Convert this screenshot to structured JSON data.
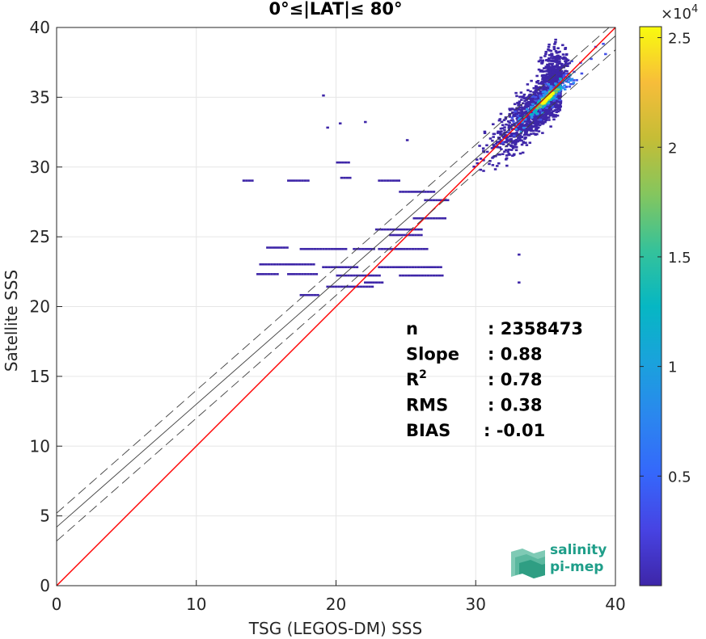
{
  "chart_data": {
    "type": "heatmap",
    "title": "0°≤|LAT|≤ 80°",
    "xlabel": "TSG (LEGOS-DM) SSS",
    "ylabel": "Satellite SSS",
    "xlim": [
      0,
      40
    ],
    "ylim": [
      0,
      40
    ],
    "xticks": [
      "0",
      "10",
      "20",
      "30",
      "40"
    ],
    "yticks": [
      "0",
      "5",
      "10",
      "15",
      "20",
      "25",
      "30",
      "35",
      "40"
    ],
    "grid": true,
    "colorbar": {
      "range": [
        0,
        25500
      ],
      "ticks": [
        "0.5",
        "1",
        "1.5",
        "2",
        "2.5"
      ],
      "tick_values": [
        0.5,
        1,
        1.5,
        2,
        2.5
      ],
      "max_value": 2.55,
      "exponent_label": "×10",
      "exponent": "4",
      "colormap": "parula"
    },
    "lines": [
      {
        "name": "identity",
        "slope": 1,
        "intercept": 0,
        "color": "#ff0000",
        "style": "solid"
      },
      {
        "name": "regression",
        "slope": 0.88,
        "intercept": 4.2,
        "color": "#404040",
        "style": "solid"
      },
      {
        "name": "regression-upper",
        "slope": 0.88,
        "intercept": 5.2,
        "color": "#404040",
        "style": "dashed"
      },
      {
        "name": "regression-lower",
        "slope": 0.88,
        "intercept": 3.2,
        "color": "#404040",
        "style": "dashed"
      }
    ],
    "density_peak": {
      "x": 35,
      "y": 35
    },
    "stats": [
      {
        "label": "n",
        "sup": "",
        "value": ": 2358473"
      },
      {
        "label": "Slope",
        "sup": "",
        "value": ": 0.88"
      },
      {
        "label": "R",
        "sup": "2",
        "value": ": 0.78"
      },
      {
        "label": "RMS",
        "sup": "",
        "value": ": 0.38"
      },
      {
        "label": "BIAS",
        "sup": "",
        "value": ": -0.01"
      }
    ]
  },
  "logo": {
    "line1": "salinity",
    "line2": "pi-mep"
  },
  "colors": {
    "identity_line": "#ff0000",
    "regression_line": "#404040",
    "logo": "#1f9e89"
  }
}
